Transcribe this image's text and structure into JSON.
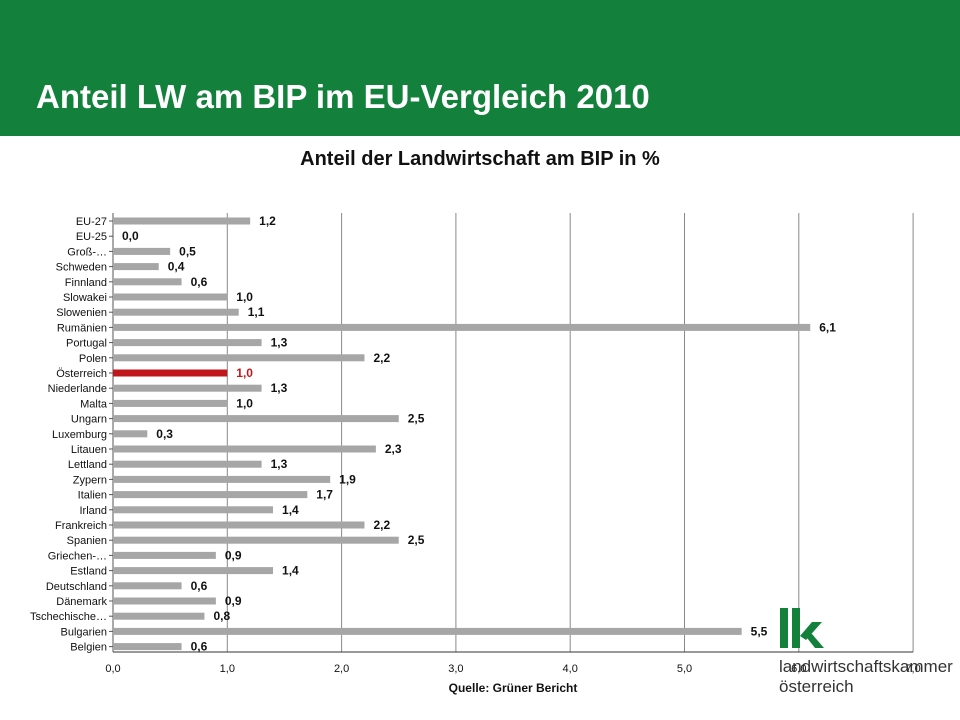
{
  "header": {
    "title": "Anteil LW am BIP im EU-Vergleich 2010"
  },
  "colors": {
    "header_bg": "#13813c",
    "bar": "#a6a6a6",
    "highlight": "#c0171c",
    "grid": "#888888"
  },
  "chart_data": {
    "type": "bar",
    "orientation": "horizontal",
    "title": "Anteil der Landwirtschaft am BIP  in %",
    "source": "Quelle: Grüner Bericht",
    "categories": [
      "EU-27",
      "EU-25",
      "Groß-…",
      "Schweden",
      "Finnland",
      "Slowakei",
      "Slowenien",
      "Rumänien",
      "Portugal",
      "Polen",
      "Österreich",
      "Niederlande",
      "Malta",
      "Ungarn",
      "Luxemburg",
      "Litauen",
      "Lettland",
      "Zypern",
      "Italien",
      "Irland",
      "Frankreich",
      "Spanien",
      "Griechen-…",
      "Estland",
      "Deutschland",
      "Dänemark",
      "Tschechische…",
      "Bulgarien",
      "Belgien"
    ],
    "values": [
      1.2,
      0.0,
      0.5,
      0.4,
      0.6,
      1.0,
      1.1,
      6.1,
      1.3,
      2.2,
      1.0,
      1.3,
      1.0,
      2.5,
      0.3,
      2.3,
      1.3,
      1.9,
      1.7,
      1.4,
      2.2,
      2.5,
      0.9,
      1.4,
      0.6,
      0.9,
      0.8,
      5.5,
      0.6
    ],
    "value_labels": [
      "1,2",
      "0,0",
      "0,5",
      "0,4",
      "0,6",
      "1,0",
      "1,1",
      "6,1",
      "1,3",
      "2,2",
      "1,0",
      "1,3",
      "1,0",
      "2,5",
      "0,3",
      "2,3",
      "1,3",
      "1,9",
      "1,7",
      "1,4",
      "2,2",
      "2,5",
      "0,9",
      "1,4",
      "0,6",
      "0,9",
      "0,8",
      "5,5",
      "0,6"
    ],
    "highlight_category": "Österreich",
    "xlim": [
      0,
      7
    ],
    "xticks": [
      0,
      1,
      2,
      3,
      4,
      5,
      6,
      7
    ],
    "xtick_labels": [
      "0,0",
      "1,0",
      "2,0",
      "3,0",
      "4,0",
      "5,0",
      "6,0",
      "7,0"
    ],
    "grid": true,
    "legend": false
  },
  "logo": {
    "mark": "lk",
    "line1": "landwirtschaftskammer",
    "line2": "österreich"
  }
}
